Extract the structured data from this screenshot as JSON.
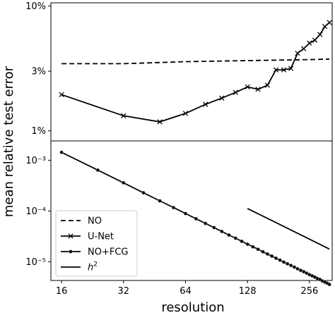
{
  "chart_data": {
    "type": "line",
    "xlabel": "resolution",
    "ylabel": "mean relative test error",
    "x_scale": "log2",
    "x_ticks": [
      16,
      32,
      64,
      128,
      256
    ],
    "x_tick_labels": [
      "16",
      "32",
      "64",
      "128",
      "256"
    ],
    "xlim": [
      14.2,
      330
    ],
    "panels": [
      {
        "name": "top",
        "y_scale": "log10",
        "ylim": [
          0.0083,
          0.106
        ],
        "y_ticks": [
          0.01,
          0.03,
          0.1
        ],
        "y_tick_labels": [
          "1%",
          "3%",
          "10%"
        ],
        "series": [
          {
            "name": "NO",
            "style": "dashed",
            "marker": "none",
            "x": [
              16,
              32,
              64,
              128,
              256,
              320
            ],
            "y": [
              0.0345,
              0.0345,
              0.0358,
              0.0365,
              0.0372,
              0.0376
            ]
          },
          {
            "name": "U-Net",
            "style": "solid",
            "marker": "x",
            "x": [
              16,
              32,
              48,
              64,
              80,
              96,
              112,
              128,
              144,
              160,
              176,
              192,
              208,
              224,
              240,
              256,
              272,
              288,
              304,
              320
            ],
            "y": [
              0.0195,
              0.0132,
              0.0118,
              0.0138,
              0.0163,
              0.0183,
              0.0203,
              0.0225,
              0.0215,
              0.0232,
              0.0308,
              0.0308,
              0.0316,
              0.0418,
              0.0455,
              0.0505,
              0.0532,
              0.0592,
              0.0685,
              0.0737
            ]
          }
        ]
      },
      {
        "name": "bottom",
        "y_scale": "log10",
        "ylim": [
          4.3e-06,
          0.0024
        ],
        "y_ticks": [
          1e-05,
          0.0001,
          0.001
        ],
        "y_tick_labels": [
          "10⁻⁵",
          "10⁻⁴",
          "10⁻³"
        ],
        "series": [
          {
            "name": "NO+FCG",
            "style": "solid",
            "marker": "dot",
            "x": [
              16,
              24,
              32,
              40,
              48,
              56,
              64,
              72,
              80,
              88,
              96,
              104,
              112,
              120,
              128,
              136,
              144,
              152,
              160,
              168,
              176,
              184,
              192,
              200,
              208,
              216,
              224,
              232,
              240,
              248,
              256,
              264,
              272,
              280,
              288,
              296,
              304,
              312,
              320
            ],
            "y": [
              0.00143,
              0.00064,
              0.00036,
              0.000229,
              0.000159,
              0.000117,
              8.94e-05,
              7.06e-05,
              5.72e-05,
              4.73e-05,
              3.97e-05,
              3.38e-05,
              2.92e-05,
              2.54e-05,
              2.23e-05,
              1.98e-05,
              1.77e-05,
              1.58e-05,
              1.43e-05,
              1.3e-05,
              1.18e-05,
              1.08e-05,
              9.9e-06,
              9.2e-06,
              8.5e-06,
              7.9e-06,
              7.3e-06,
              6.8e-06,
              6.4e-06,
              6e-06,
              5.6e-06,
              5.3e-06,
              5e-06,
              4.7e-06,
              4.5e-06,
              4.2e-06,
              4e-06,
              3.8e-06,
              3.6e-06
            ]
          },
          {
            "name": "h²",
            "style": "solid",
            "marker": "none",
            "x": [
              128,
              320
            ],
            "y": [
              0.000112,
              1.79e-05
            ]
          }
        ]
      }
    ],
    "legend": {
      "position": "lower-left",
      "entries": [
        {
          "label": "NO",
          "style": "dashed",
          "marker": "none"
        },
        {
          "label": "U-Net",
          "style": "solid",
          "marker": "x"
        },
        {
          "label": "NO+FCG",
          "style": "solid",
          "marker": "dot"
        },
        {
          "label": "h",
          "sup": "2",
          "style": "solid",
          "marker": "none"
        }
      ]
    }
  }
}
